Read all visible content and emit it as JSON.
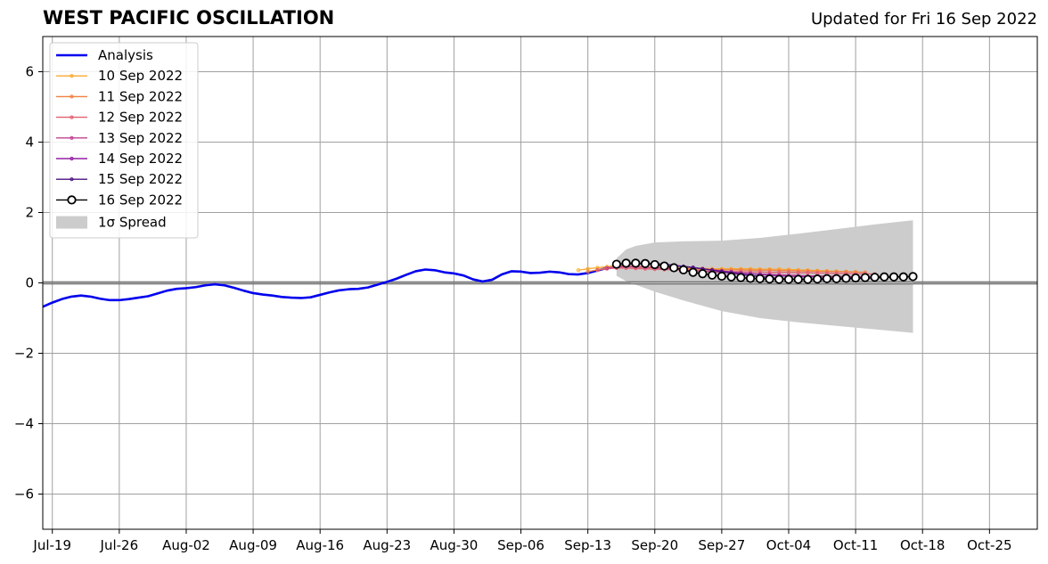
{
  "header": {
    "title": "WEST PACIFIC OSCILLATION",
    "updated": "Updated for Fri 16 Sep 2022"
  },
  "chart_data": {
    "type": "line",
    "title": "WEST PACIFIC OSCILLATION",
    "subtitle": "Updated for Fri 16 Sep 2022",
    "xlabel": "",
    "ylabel": "",
    "ylim": [
      -7,
      7
    ],
    "xlim": [
      "2022-07-18",
      "2022-10-30"
    ],
    "grid": true,
    "legend_position": "top-left",
    "x_ticks": [
      "Jul-19",
      "Jul-26",
      "Aug-02",
      "Aug-09",
      "Aug-16",
      "Aug-23",
      "Aug-30",
      "Sep-06",
      "Sep-13",
      "Sep-20",
      "Sep-27",
      "Oct-04",
      "Oct-11",
      "Oct-18",
      "Oct-25"
    ],
    "x_tick_dates": [
      "2022-07-19",
      "2022-07-26",
      "2022-08-02",
      "2022-08-09",
      "2022-08-16",
      "2022-08-23",
      "2022-08-30",
      "2022-09-06",
      "2022-09-13",
      "2022-09-20",
      "2022-09-27",
      "2022-10-04",
      "2022-10-11",
      "2022-10-18",
      "2022-10-25"
    ],
    "y_ticks": [
      -6,
      -4,
      -2,
      0,
      2,
      4,
      6
    ],
    "y_tick_labels": [
      "−6",
      "−4",
      "−2",
      "0",
      "2",
      "4",
      "6"
    ],
    "legend": [
      "Analysis",
      "10 Sep 2022",
      "11 Sep 2022",
      "12 Sep 2022",
      "13 Sep 2022",
      "14 Sep 2022",
      "15 Sep 2022",
      "16 Sep 2022",
      "1σ Spread"
    ],
    "analysis": {
      "name": "Analysis",
      "color": "#0000ee",
      "x": [
        "2022-07-18",
        "2022-07-19",
        "2022-07-20",
        "2022-07-21",
        "2022-07-22",
        "2022-07-23",
        "2022-07-24",
        "2022-07-25",
        "2022-07-26",
        "2022-07-27",
        "2022-07-28",
        "2022-07-29",
        "2022-07-30",
        "2022-07-31",
        "2022-08-01",
        "2022-08-02",
        "2022-08-03",
        "2022-08-04",
        "2022-08-05",
        "2022-08-06",
        "2022-08-07",
        "2022-08-08",
        "2022-08-09",
        "2022-08-10",
        "2022-08-11",
        "2022-08-12",
        "2022-08-13",
        "2022-08-14",
        "2022-08-15",
        "2022-08-16",
        "2022-08-17",
        "2022-08-18",
        "2022-08-19",
        "2022-08-20",
        "2022-08-21",
        "2022-08-22",
        "2022-08-23",
        "2022-08-24",
        "2022-08-25",
        "2022-08-26",
        "2022-08-27",
        "2022-08-28",
        "2022-08-29",
        "2022-08-30",
        "2022-08-31",
        "2022-09-01",
        "2022-09-02",
        "2022-09-03",
        "2022-09-04",
        "2022-09-05",
        "2022-09-06",
        "2022-09-07",
        "2022-09-08",
        "2022-09-09",
        "2022-09-10",
        "2022-09-11",
        "2022-09-12",
        "2022-09-13",
        "2022-09-14",
        "2022-09-15",
        "2022-09-16"
      ],
      "values": [
        -0.68,
        -0.56,
        -0.46,
        -0.39,
        -0.36,
        -0.39,
        -0.45,
        -0.49,
        -0.49,
        -0.46,
        -0.42,
        -0.38,
        -0.3,
        -0.22,
        -0.17,
        -0.15,
        -0.12,
        -0.07,
        -0.04,
        -0.07,
        -0.14,
        -0.22,
        -0.29,
        -0.33,
        -0.36,
        -0.4,
        -0.42,
        -0.43,
        -0.41,
        -0.34,
        -0.27,
        -0.21,
        -0.18,
        -0.17,
        -0.13,
        -0.05,
        0.03,
        0.12,
        0.23,
        0.33,
        0.38,
        0.36,
        0.3,
        0.27,
        0.21,
        0.1,
        0.04,
        0.09,
        0.24,
        0.33,
        0.32,
        0.28,
        0.29,
        0.32,
        0.3,
        0.25,
        0.24,
        0.28,
        0.35,
        0.42,
        0.5
      ]
    },
    "forecasts": [
      {
        "name": "10 Sep 2022",
        "color": "#f8a830",
        "start": "2022-09-12",
        "values": [
          0.36,
          0.4,
          0.43,
          0.46,
          0.48,
          0.48,
          0.47,
          0.46,
          0.45,
          0.44,
          0.43,
          0.42,
          0.41,
          0.41,
          0.4,
          0.4,
          0.4,
          0.4,
          0.4,
          0.39,
          0.39,
          0.39,
          0.38,
          0.37,
          0.36,
          0.35,
          0.34,
          0.33,
          0.32,
          0.31
        ]
      },
      {
        "name": "11 Sep 2022",
        "color": "#f08040",
        "start": "2022-09-13",
        "values": [
          0.32,
          0.37,
          0.42,
          0.45,
          0.46,
          0.45,
          0.44,
          0.43,
          0.42,
          0.41,
          0.4,
          0.39,
          0.38,
          0.38,
          0.37,
          0.37,
          0.37,
          0.36,
          0.36,
          0.36,
          0.35,
          0.35,
          0.34,
          0.34,
          0.33,
          0.33,
          0.32,
          0.32,
          0.31,
          0.3
        ]
      },
      {
        "name": "12 Sep 2022",
        "color": "#e06070",
        "start": "2022-09-14",
        "values": [
          0.36,
          0.4,
          0.42,
          0.42,
          0.41,
          0.4,
          0.39,
          0.38,
          0.37,
          0.36,
          0.35,
          0.34,
          0.33,
          0.33,
          0.32,
          0.32,
          0.31,
          0.31,
          0.3,
          0.3,
          0.3,
          0.29,
          0.29,
          0.28,
          0.28,
          0.27,
          0.27,
          0.26,
          0.26,
          0.25
        ]
      },
      {
        "name": "13 Sep 2022",
        "color": "#c04090",
        "start": "2022-09-15",
        "values": [
          0.42,
          0.45,
          0.46,
          0.46,
          0.45,
          0.43,
          0.41,
          0.39,
          0.37,
          0.35,
          0.33,
          0.31,
          0.3,
          0.28,
          0.27,
          0.26,
          0.25,
          0.24,
          0.23,
          0.22,
          0.21,
          0.2,
          0.2,
          0.19,
          0.19,
          0.18,
          0.18,
          0.17,
          0.17,
          0.16
        ]
      },
      {
        "name": "14 Sep 2022",
        "color": "#9020a0",
        "start": "2022-09-16",
        "values": [
          0.48,
          0.52,
          0.54,
          0.54,
          0.53,
          0.51,
          0.49,
          0.46,
          0.43,
          0.4,
          0.37,
          0.34,
          0.31,
          0.28,
          0.26,
          0.24,
          0.22,
          0.2,
          0.19,
          0.18,
          0.17,
          0.17,
          0.16,
          0.16,
          0.16,
          0.16,
          0.16,
          0.16,
          0.16,
          0.16
        ]
      },
      {
        "name": "15 Sep 2022",
        "color": "#4a1080",
        "start": "2022-09-17",
        "values": [
          0.52,
          0.55,
          0.56,
          0.55,
          0.53,
          0.5,
          0.47,
          0.44,
          0.4,
          0.36,
          0.32,
          0.28,
          0.24,
          0.21,
          0.18,
          0.15,
          0.13,
          0.11,
          0.1,
          0.09,
          0.09,
          0.09,
          0.1,
          0.11,
          0.12,
          0.13,
          0.14,
          0.15,
          0.16,
          0.17
        ]
      },
      {
        "name": "16 Sep 2022",
        "color": "#000000",
        "start": "2022-09-16",
        "values": [
          0.53,
          0.56,
          0.56,
          0.55,
          0.52,
          0.48,
          0.43,
          0.37,
          0.3,
          0.26,
          0.22,
          0.19,
          0.17,
          0.15,
          0.13,
          0.12,
          0.11,
          0.1,
          0.1,
          0.1,
          0.1,
          0.11,
          0.12,
          0.12,
          0.13,
          0.14,
          0.15,
          0.16,
          0.17,
          0.17,
          0.17,
          0.18
        ]
      }
    ],
    "spread": {
      "name": "1σ Spread",
      "color": "#cccccc",
      "x": [
        "2022-09-16",
        "2022-09-17",
        "2022-09-18",
        "2022-09-20",
        "2022-09-23",
        "2022-09-27",
        "2022-10-01",
        "2022-10-05",
        "2022-10-09",
        "2022-10-13",
        "2022-10-17"
      ],
      "upper": [
        0.7,
        0.95,
        1.05,
        1.15,
        1.18,
        1.2,
        1.28,
        1.4,
        1.53,
        1.66,
        1.78
      ],
      "lower": [
        0.2,
        0.05,
        -0.05,
        -0.25,
        -0.5,
        -0.8,
        -1.0,
        -1.12,
        -1.22,
        -1.32,
        -1.42
      ]
    }
  }
}
